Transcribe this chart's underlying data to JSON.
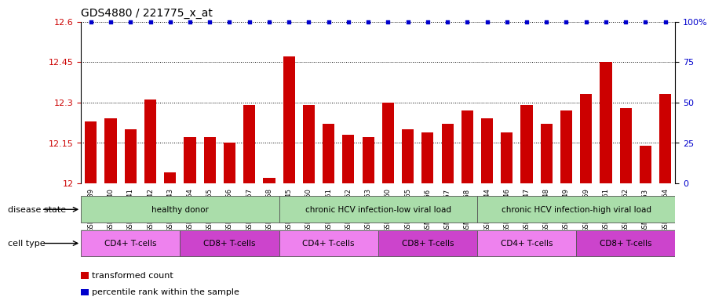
{
  "title": "GDS4880 / 221775_x_at",
  "samples": [
    "GSM1210739",
    "GSM1210740",
    "GSM1210741",
    "GSM1210742",
    "GSM1210743",
    "GSM1210754",
    "GSM1210755",
    "GSM1210756",
    "GSM1210757",
    "GSM1210758",
    "GSM1210745",
    "GSM1210750",
    "GSM1210751",
    "GSM1210752",
    "GSM1210753",
    "GSM1210760",
    "GSM1210765",
    "GSM1210766",
    "GSM1210767",
    "GSM1210768",
    "GSM1210744",
    "GSM1210746",
    "GSM1210747",
    "GSM1210748",
    "GSM1210749",
    "GSM1210759",
    "GSM1210761",
    "GSM1210762",
    "GSM1210763",
    "GSM1210764"
  ],
  "bar_values": [
    12.23,
    12.24,
    12.2,
    12.31,
    12.04,
    12.17,
    12.17,
    12.15,
    12.29,
    12.02,
    12.47,
    12.29,
    12.22,
    12.18,
    12.17,
    12.3,
    12.2,
    12.19,
    12.22,
    12.27,
    12.24,
    12.19,
    12.29,
    12.22,
    12.27,
    12.33,
    12.45,
    12.28,
    12.14,
    12.33
  ],
  "percentile_values": [
    100,
    100,
    100,
    100,
    100,
    100,
    100,
    100,
    100,
    100,
    100,
    100,
    100,
    100,
    100,
    100,
    100,
    100,
    100,
    100,
    100,
    100,
    100,
    100,
    100,
    100,
    100,
    100,
    100,
    100
  ],
  "bar_color": "#cc0000",
  "percentile_color": "#0000cc",
  "ylim_left": [
    12.0,
    12.6
  ],
  "ylim_right": [
    0,
    100
  ],
  "yticks_left": [
    12.0,
    12.15,
    12.3,
    12.45,
    12.6
  ],
  "ytick_labels_left": [
    "12",
    "12.15",
    "12.3",
    "12.45",
    "12.6"
  ],
  "yticks_right": [
    0,
    25,
    50,
    75,
    100
  ],
  "ytick_labels_right": [
    "0",
    "25",
    "50",
    "75",
    "100%"
  ],
  "disease_state_groups": [
    {
      "label": "healthy donor",
      "start": 0,
      "end": 10,
      "color": "#aaddaa"
    },
    {
      "label": "chronic HCV infection-low viral load",
      "start": 10,
      "end": 20,
      "color": "#aaddaa"
    },
    {
      "label": "chronic HCV infection-high viral load",
      "start": 20,
      "end": 30,
      "color": "#aaddaa"
    }
  ],
  "cell_type_groups": [
    {
      "label": "CD4+ T-cells",
      "start": 0,
      "end": 5,
      "color": "#ee82ee"
    },
    {
      "label": "CD8+ T-cells",
      "start": 5,
      "end": 10,
      "color": "#cc44cc"
    },
    {
      "label": "CD4+ T-cells",
      "start": 10,
      "end": 15,
      "color": "#ee82ee"
    },
    {
      "label": "CD8+ T-cells",
      "start": 15,
      "end": 20,
      "color": "#cc44cc"
    },
    {
      "label": "CD4+ T-cells",
      "start": 20,
      "end": 25,
      "color": "#ee82ee"
    },
    {
      "label": "CD8+ T-cells",
      "start": 25,
      "end": 30,
      "color": "#cc44cc"
    }
  ],
  "legend_items": [
    {
      "label": "transformed count",
      "color": "#cc0000"
    },
    {
      "label": "percentile rank within the sample",
      "color": "#0000cc"
    }
  ],
  "background_color": "#ffffff",
  "bar_width": 0.6,
  "title_fontsize": 10,
  "tick_fontsize": 8,
  "annotation_fontsize": 8
}
